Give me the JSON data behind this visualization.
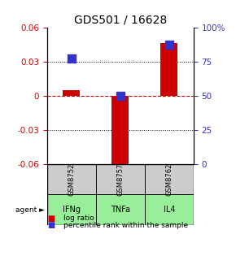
{
  "title": "GDS501 / 16628",
  "samples": [
    "GSM8752",
    "GSM8757",
    "GSM8762"
  ],
  "agents": [
    "IFNg",
    "TNFa",
    "IL4"
  ],
  "log_ratios": [
    0.005,
    -0.065,
    0.046
  ],
  "percentile_ranks": [
    0.77,
    0.5,
    0.87
  ],
  "ylim_left": [
    -0.06,
    0.06
  ],
  "ylim_right": [
    0.0,
    1.0
  ],
  "yticks_left": [
    -0.06,
    -0.03,
    0.0,
    0.03,
    0.06
  ],
  "ytick_labels_left": [
    "-0.06",
    "-0.03",
    "0",
    "0.03",
    "0.06"
  ],
  "yticks_right": [
    0.0,
    0.25,
    0.5,
    0.75,
    1.0
  ],
  "ytick_labels_right": [
    "0",
    "25",
    "50",
    "75",
    "100%"
  ],
  "bar_color": "#cc0000",
  "dot_color": "#3333cc",
  "agent_bg_color": "#99ee99",
  "sample_bg_color": "#cccccc",
  "zero_line_color": "#cc0000",
  "bar_width": 0.35,
  "dot_size": 45,
  "title_fontsize": 10,
  "tick_fontsize": 7.5,
  "legend_fontsize": 6.5
}
